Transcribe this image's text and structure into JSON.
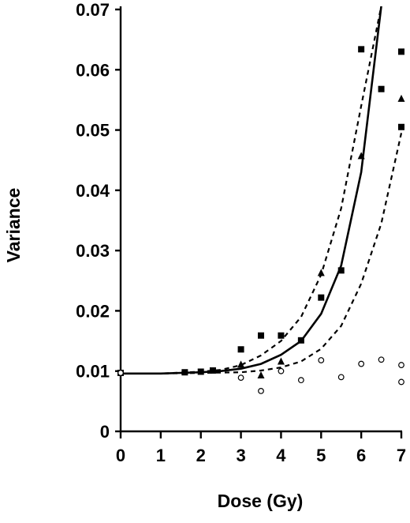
{
  "chart_data": {
    "type": "scatter",
    "title": "",
    "xlabel": "Dose (Gy)",
    "ylabel": "Variance",
    "xlim": [
      0,
      7
    ],
    "ylim": [
      0,
      0.07
    ],
    "x_ticks": [
      0,
      1,
      2,
      3,
      4,
      5,
      6,
      7
    ],
    "x_tick_labels": [
      "0",
      "1",
      "2",
      "3",
      "4",
      "5",
      "6",
      "7"
    ],
    "y_ticks": [
      0,
      0.01,
      0.02,
      0.03,
      0.04,
      0.05,
      0.06,
      0.07
    ],
    "y_tick_labels": [
      "0",
      "0.01",
      "0.02",
      "0.03",
      "0.04",
      "0.05",
      "0.06",
      "0.07"
    ],
    "grid": false,
    "legend": "none",
    "series": [
      {
        "marker": "filled-square",
        "x": [
          0,
          1.6,
          2.0,
          2.3,
          3.0,
          3.5,
          4.0,
          4.5,
          5.0,
          5.5,
          6.0,
          6.5,
          7.0,
          7.0
        ],
        "y": [
          0.0097,
          0.0098,
          0.0099,
          0.0101,
          0.0136,
          0.0159,
          0.0159,
          0.0151,
          0.0222,
          0.0267,
          0.0634,
          0.0568,
          0.063,
          0.0505
        ]
      },
      {
        "marker": "filled-triangle",
        "x": [
          3.0,
          3.5,
          4.0,
          5.0,
          6.0,
          7.0
        ],
        "y": [
          0.0111,
          0.0093,
          0.0116,
          0.0263,
          0.0457,
          0.0552
        ]
      },
      {
        "marker": "open-circle",
        "x": [
          0,
          3.0,
          3.5,
          4.0,
          4.5,
          5.0,
          5.5,
          6.0,
          6.5,
          7.0,
          7.0
        ],
        "y": [
          0.0097,
          0.0089,
          0.0067,
          0.01,
          0.0085,
          0.0118,
          0.009,
          0.0112,
          0.0119,
          0.011,
          0.0082
        ]
      }
    ],
    "curves": [
      {
        "style": "solid",
        "x": [
          0,
          0.5,
          1,
          1.5,
          2,
          2.5,
          3,
          3.5,
          4,
          4.5,
          5,
          5.5,
          6,
          6.5
        ],
        "y": [
          0.0096,
          0.0096,
          0.0096,
          0.0097,
          0.0098,
          0.01,
          0.0104,
          0.0112,
          0.0127,
          0.015,
          0.0195,
          0.0275,
          0.043,
          0.0706
        ]
      },
      {
        "style": "dashed",
        "x": [
          0,
          1,
          2,
          2.5,
          3,
          3.5,
          4,
          4.5,
          5,
          5.5,
          6,
          6.5
        ],
        "y": [
          0.0096,
          0.0096,
          0.0099,
          0.0102,
          0.011,
          0.0126,
          0.015,
          0.019,
          0.026,
          0.037,
          0.054,
          0.0706
        ]
      },
      {
        "style": "dashed",
        "x": [
          0,
          1,
          2,
          3,
          3.5,
          4,
          4.5,
          5,
          5.5,
          6,
          6.5,
          7
        ],
        "y": [
          0.0096,
          0.0096,
          0.0097,
          0.0098,
          0.0101,
          0.0106,
          0.0116,
          0.0137,
          0.0175,
          0.0245,
          0.0345,
          0.0495
        ]
      }
    ]
  }
}
